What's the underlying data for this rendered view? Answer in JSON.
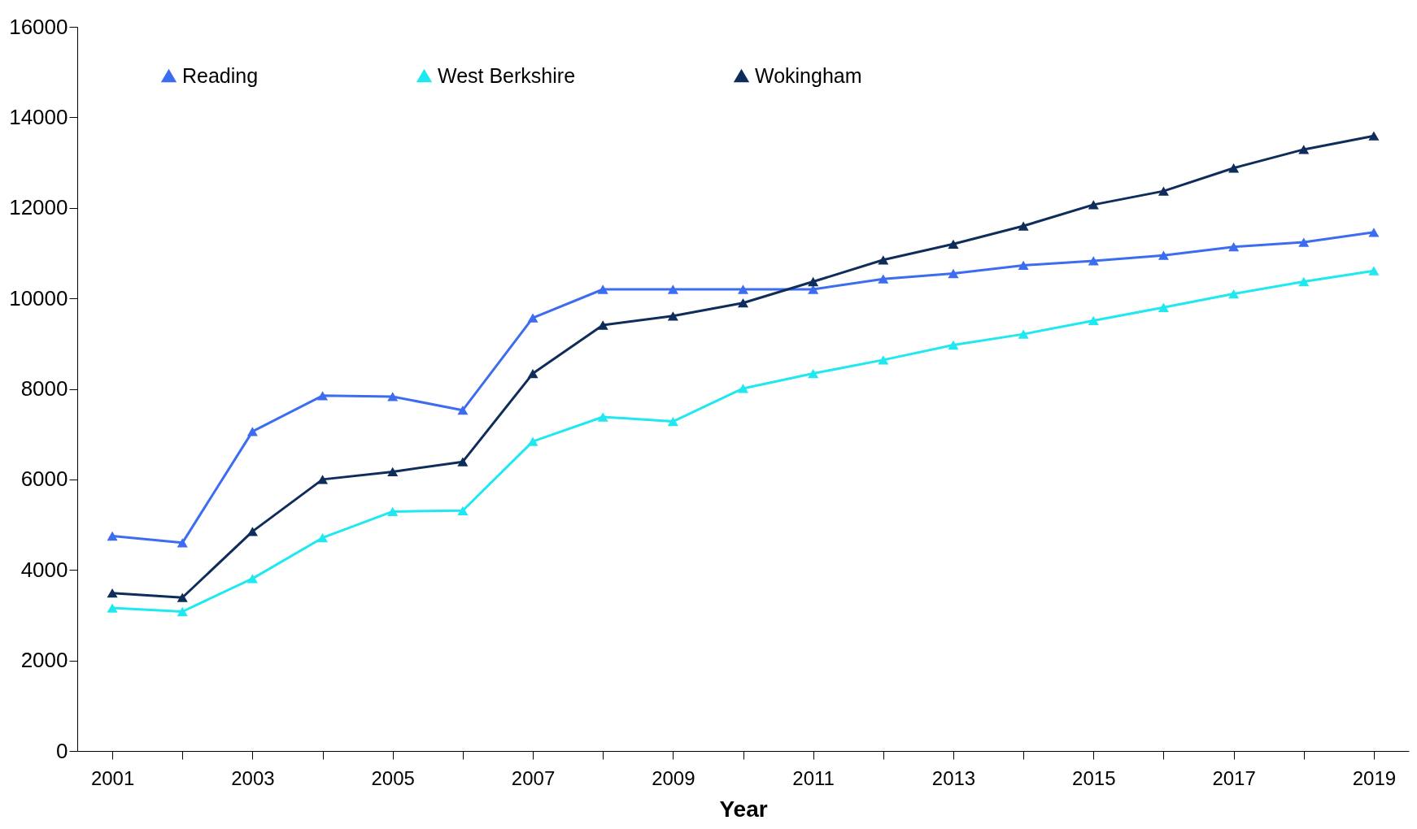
{
  "chart_data": {
    "type": "line",
    "xlabel": "Year",
    "categories": [
      "2001",
      null,
      "2003",
      null,
      "2005",
      null,
      "2007",
      null,
      "2009",
      null,
      "2011",
      null,
      "2013",
      null,
      "2015",
      null,
      "2017",
      null,
      "2019"
    ],
    "series": [
      {
        "name": "Reading",
        "color": "#3c6cf0",
        "values": [
          4750,
          4600,
          7060,
          7850,
          7830,
          7530,
          9570,
          10200,
          10200,
          10200,
          10200,
          10430,
          10550,
          10730,
          10830,
          10950,
          11140,
          11240,
          11460
        ]
      },
      {
        "name": "West Berkshire",
        "color": "#1ee8f0",
        "values": [
          3160,
          3080,
          3810,
          4710,
          5290,
          5310,
          6840,
          7380,
          7280,
          8010,
          8340,
          8640,
          8970,
          9210,
          9510,
          9800,
          10100,
          10370,
          10610
        ]
      },
      {
        "name": "Wokingham",
        "color": "#0f2d5a",
        "values": [
          3490,
          3390,
          4850,
          6000,
          6170,
          6390,
          8340,
          9410,
          9610,
          9900,
          10370,
          10850,
          11200,
          11600,
          12070,
          12370,
          12880,
          13290,
          13590
        ]
      }
    ],
    "ylim": [
      0,
      16000
    ],
    "yticks": [
      0,
      2000,
      4000,
      6000,
      8000,
      10000,
      12000,
      14000,
      16000
    ],
    "grid": false,
    "legend": "top left",
    "marker": "triangle",
    "line_style": "solid"
  }
}
